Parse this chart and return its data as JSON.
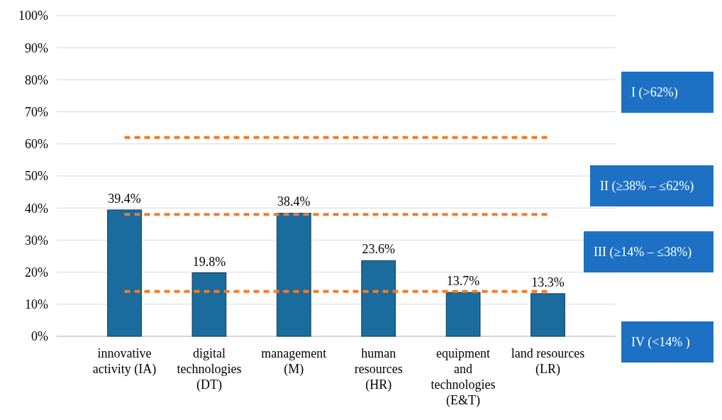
{
  "chart_data": {
    "type": "bar",
    "categories": [
      "innovative\nactivity (IA)",
      "digital\ntechnologies\n(DT)",
      "management\n(M)",
      "human\nresources\n(HR)",
      "equipment\nand\ntechnologies\n(E&T)",
      "land resources\n(LR)"
    ],
    "values": [
      39.4,
      19.8,
      38.4,
      23.6,
      13.7,
      13.3
    ],
    "value_labels": [
      "39.4%",
      "19.8%",
      "38.4%",
      "23.6%",
      "13.7%",
      "13.3%"
    ],
    "color": "#1b6c9e",
    "ylim": [
      0,
      100
    ],
    "yticks": [
      {
        "value": 0,
        "label": "0%"
      },
      {
        "value": 10,
        "label": "10%"
      },
      {
        "value": 20,
        "label": "20%"
      },
      {
        "value": 30,
        "label": "30%"
      },
      {
        "value": 40,
        "label": "40%"
      },
      {
        "value": 50,
        "label": "50%"
      },
      {
        "value": 60,
        "label": "60%"
      },
      {
        "value": 70,
        "label": "70%"
      },
      {
        "value": 80,
        "label": "80%"
      },
      {
        "value": 90,
        "label": "90%"
      },
      {
        "value": 100,
        "label": "100%"
      }
    ],
    "grid": "y",
    "ref_lines": [
      {
        "axis": "y",
        "value": 62,
        "color": "#f07c2c",
        "line_style": "dashed"
      },
      {
        "axis": "y",
        "value": 38,
        "color": "#f07c2c",
        "line_style": "dashed"
      },
      {
        "axis": "y",
        "value": 14,
        "color": "#f07c2c",
        "line_style": "dashed"
      }
    ],
    "annotations": [
      "I (>62%)",
      "II (≥38% – ≤62%)",
      "III (≥14% – ≤38%)",
      "IV (<14% )"
    ]
  }
}
